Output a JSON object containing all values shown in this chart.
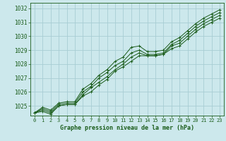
{
  "background_color": "#cce8ec",
  "grid_color": "#a8cdd4",
  "line_color": "#1a5c1a",
  "title": "Graphe pression niveau de la mer (hPa)",
  "xlim": [
    -0.5,
    23.5
  ],
  "ylim": [
    1024.3,
    1032.4
  ],
  "yticks": [
    1025,
    1026,
    1027,
    1028,
    1029,
    1030,
    1031,
    1032
  ],
  "xticks": [
    0,
    1,
    2,
    3,
    4,
    5,
    6,
    7,
    8,
    9,
    10,
    11,
    12,
    13,
    14,
    15,
    16,
    17,
    18,
    19,
    20,
    21,
    22,
    23
  ],
  "lines": [
    [
      1024.5,
      1024.7,
      1024.5,
      1025.0,
      1025.1,
      1025.1,
      1025.8,
      1026.3,
      1026.7,
      1027.1,
      1027.6,
      1028.0,
      1028.5,
      1028.8,
      1028.6,
      1028.6,
      1028.7,
      1029.3,
      1029.5,
      1030.0,
      1030.5,
      1030.9,
      1031.2,
      1031.5
    ],
    [
      1024.5,
      1024.6,
      1024.4,
      1025.0,
      1025.1,
      1025.1,
      1025.7,
      1026.0,
      1026.5,
      1026.9,
      1027.5,
      1027.8,
      1028.2,
      1028.6,
      1028.6,
      1028.6,
      1028.7,
      1029.1,
      1029.3,
      1029.8,
      1030.3,
      1030.7,
      1031.0,
      1031.3
    ],
    [
      1024.5,
      1024.8,
      1024.6,
      1025.1,
      1025.2,
      1025.2,
      1026.0,
      1026.4,
      1027.0,
      1027.4,
      1027.9,
      1028.2,
      1028.8,
      1029.0,
      1028.7,
      1028.7,
      1028.8,
      1029.4,
      1029.7,
      1030.2,
      1030.7,
      1031.1,
      1031.4,
      1031.7
    ],
    [
      1024.5,
      1024.9,
      1024.7,
      1025.2,
      1025.3,
      1025.3,
      1026.2,
      1026.6,
      1027.2,
      1027.6,
      1028.2,
      1028.5,
      1029.2,
      1029.3,
      1028.9,
      1028.9,
      1029.0,
      1029.6,
      1029.9,
      1030.4,
      1030.9,
      1031.3,
      1031.6,
      1031.9
    ]
  ]
}
